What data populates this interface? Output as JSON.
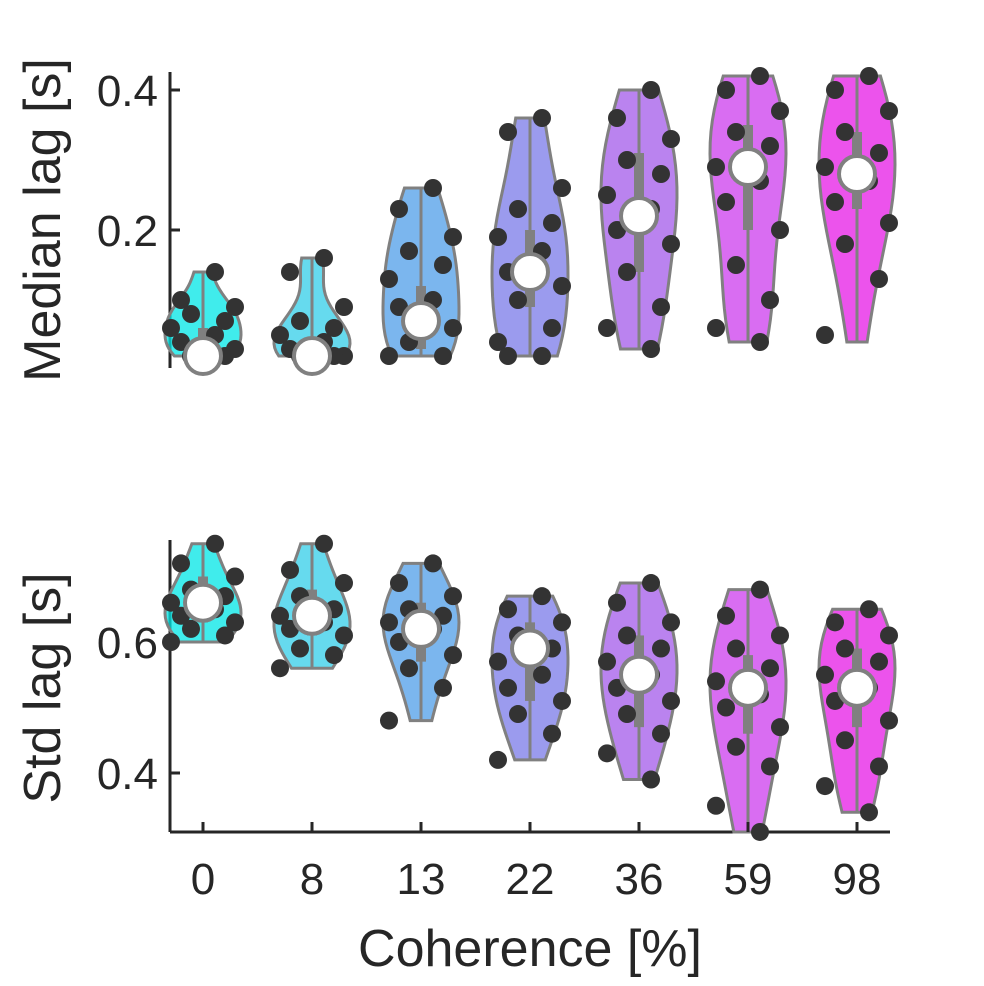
{
  "chart_data": [
    {
      "type": "violin",
      "panel": "top",
      "ylabel": "Median lag [s]",
      "xlabel": "",
      "ylim": [
        0.0,
        0.42
      ],
      "yticks": [
        0.2,
        0.4
      ],
      "ytick_labels": [
        "0.2",
        "0.4"
      ],
      "categories": [
        "0",
        "8",
        "13",
        "22",
        "36",
        "59",
        "98"
      ],
      "show_x_tick_labels": false,
      "medians": [
        0.02,
        0.02,
        0.07,
        0.14,
        0.22,
        0.29,
        0.28
      ],
      "ranges": [
        [
          0.02,
          0.14
        ],
        [
          0.02,
          0.16
        ],
        [
          0.02,
          0.26
        ],
        [
          0.02,
          0.36
        ],
        [
          0.03,
          0.4
        ],
        [
          0.04,
          0.42
        ],
        [
          0.04,
          0.42
        ]
      ],
      "iqr": [
        [
          0.02,
          0.06
        ],
        [
          0.02,
          0.03
        ],
        [
          0.03,
          0.12
        ],
        [
          0.09,
          0.2
        ],
        [
          0.14,
          0.31
        ],
        [
          0.2,
          0.35
        ],
        [
          0.23,
          0.34
        ]
      ],
      "points": [
        [
          0.14,
          0.1,
          0.09,
          0.08,
          0.07,
          0.06,
          0.05,
          0.04,
          0.03,
          0.02,
          0.02
        ],
        [
          0.16,
          0.14,
          0.09,
          0.07,
          0.06,
          0.05,
          0.04,
          0.03,
          0.02,
          0.02,
          0.02
        ],
        [
          0.26,
          0.23,
          0.19,
          0.17,
          0.15,
          0.13,
          0.1,
          0.09,
          0.06,
          0.04,
          0.02,
          0.02
        ],
        [
          0.36,
          0.34,
          0.26,
          0.23,
          0.21,
          0.19,
          0.17,
          0.14,
          0.12,
          0.1,
          0.06,
          0.04,
          0.02,
          0.02
        ],
        [
          0.4,
          0.36,
          0.33,
          0.3,
          0.28,
          0.25,
          0.23,
          0.2,
          0.18,
          0.14,
          0.09,
          0.06,
          0.03
        ],
        [
          0.42,
          0.4,
          0.37,
          0.34,
          0.32,
          0.29,
          0.27,
          0.24,
          0.2,
          0.15,
          0.1,
          0.06,
          0.04
        ],
        [
          0.42,
          0.4,
          0.37,
          0.34,
          0.31,
          0.29,
          0.27,
          0.24,
          0.21,
          0.18,
          0.13,
          0.05
        ]
      ],
      "violin_color": [
        "#00e5e5",
        "#33cde8",
        "#4f9ee8",
        "#7a7ae8",
        "#a35aea",
        "#cc3ced",
        "#e619e6"
      ],
      "point_color": "#333333",
      "median_marker_color": "#ffffff",
      "outline_color": "#808080"
    },
    {
      "type": "violin",
      "panel": "bottom",
      "ylabel": "Std lag [s]",
      "xlabel": "Coherence [%]",
      "ylim": [
        0.3,
        0.76
      ],
      "yticks": [
        0.4,
        0.6
      ],
      "ytick_labels": [
        "0.4",
        "0.6"
      ],
      "categories": [
        "0",
        "8",
        "13",
        "22",
        "36",
        "59",
        "98"
      ],
      "show_x_tick_labels": true,
      "medians": [
        0.66,
        0.64,
        0.62,
        0.59,
        0.55,
        0.53,
        0.53
      ],
      "ranges": [
        [
          0.6,
          0.75
        ],
        [
          0.56,
          0.75
        ],
        [
          0.48,
          0.72
        ],
        [
          0.42,
          0.67
        ],
        [
          0.39,
          0.69
        ],
        [
          0.31,
          0.68
        ],
        [
          0.34,
          0.65
        ]
      ],
      "iqr": [
        [
          0.63,
          0.7
        ],
        [
          0.61,
          0.68
        ],
        [
          0.57,
          0.66
        ],
        [
          0.51,
          0.63
        ],
        [
          0.47,
          0.61
        ],
        [
          0.46,
          0.58
        ],
        [
          0.47,
          0.59
        ]
      ],
      "points": [
        [
          0.75,
          0.72,
          0.7,
          0.68,
          0.67,
          0.66,
          0.65,
          0.64,
          0.63,
          0.62,
          0.61,
          0.6
        ],
        [
          0.75,
          0.71,
          0.69,
          0.67,
          0.65,
          0.64,
          0.63,
          0.62,
          0.61,
          0.59,
          0.58,
          0.56
        ],
        [
          0.72,
          0.69,
          0.67,
          0.65,
          0.64,
          0.63,
          0.62,
          0.6,
          0.58,
          0.56,
          0.53,
          0.48
        ],
        [
          0.67,
          0.65,
          0.63,
          0.61,
          0.59,
          0.57,
          0.55,
          0.53,
          0.51,
          0.49,
          0.46,
          0.42
        ],
        [
          0.69,
          0.66,
          0.63,
          0.61,
          0.59,
          0.57,
          0.55,
          0.53,
          0.51,
          0.49,
          0.46,
          0.43,
          0.39
        ],
        [
          0.68,
          0.64,
          0.61,
          0.59,
          0.56,
          0.54,
          0.52,
          0.5,
          0.47,
          0.44,
          0.41,
          0.35,
          0.31
        ],
        [
          0.65,
          0.63,
          0.61,
          0.59,
          0.57,
          0.55,
          0.53,
          0.51,
          0.48,
          0.45,
          0.41,
          0.38,
          0.34
        ]
      ],
      "violin_color": [
        "#00e5e5",
        "#33cde8",
        "#4f9ee8",
        "#7a7ae8",
        "#a35aea",
        "#cc3ced",
        "#e619e6"
      ],
      "point_color": "#333333",
      "median_marker_color": "#ffffff",
      "outline_color": "#808080"
    }
  ]
}
